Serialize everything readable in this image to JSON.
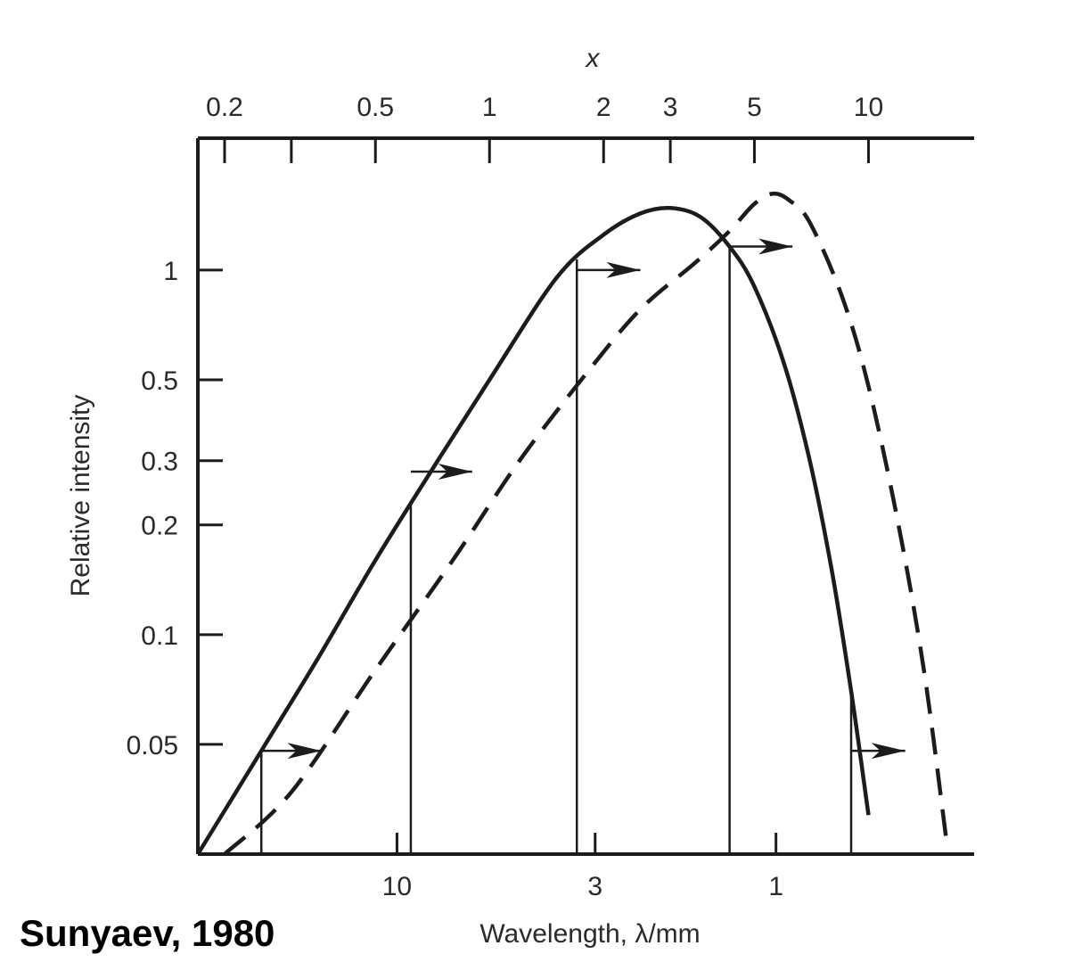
{
  "credit": "Sunyaev, 1980",
  "chart_data": {
    "type": "line",
    "ylabel": "Relative intensity",
    "xlabel_bottom": "Wavelength, λ/mm",
    "xlabel_top": "x",
    "y_scale": "log",
    "x_scale": "log",
    "x_top_ticks": [
      "0.2",
      "0.5",
      "1",
      "2",
      "3",
      "5",
      "10"
    ],
    "x_top_tick_values": [
      0.2,
      0.5,
      1,
      2,
      3,
      5,
      10
    ],
    "x_bottom_ticks": [
      "10",
      "3",
      "1"
    ],
    "x_bottom_tick_values_x": [
      0.57,
      1.9,
      5.7
    ],
    "y_ticks": [
      "1",
      "0.5",
      "0.3",
      "0.2",
      "0.1",
      "0.05"
    ],
    "y_tick_values": [
      1,
      0.5,
      0.3,
      0.2,
      0.1,
      0.05
    ],
    "xlim": [
      0.17,
      19
    ],
    "ylim": [
      0.025,
      2.3
    ],
    "series": [
      {
        "style": "solid",
        "x": [
          0.17,
          0.25,
          0.35,
          0.5,
          0.7,
          1.0,
          1.5,
          2.0,
          2.5,
          3.0,
          3.6,
          4.3,
          5.0,
          6.0,
          7.0,
          8.0,
          9.0,
          10.0
        ],
        "y": [
          0.025,
          0.048,
          0.085,
          0.16,
          0.28,
          0.5,
          0.95,
          1.25,
          1.43,
          1.48,
          1.4,
          1.16,
          0.9,
          0.55,
          0.3,
          0.15,
          0.07,
          0.032
        ]
      },
      {
        "style": "dashed",
        "x": [
          0.2,
          0.3,
          0.5,
          0.8,
          1.2,
          1.8,
          2.5,
          3.5,
          4.3,
          5.0,
          5.6,
          6.2,
          7.0,
          8.5,
          10.0,
          12.0,
          14.0,
          16.0
        ],
        "y": [
          0.025,
          0.037,
          0.08,
          0.16,
          0.3,
          0.52,
          0.78,
          1.05,
          1.28,
          1.52,
          1.62,
          1.55,
          1.35,
          0.85,
          0.48,
          0.2,
          0.08,
          0.028
        ]
      }
    ],
    "drop_lines_x": [
      0.25,
      0.62,
      1.7,
      4.3,
      9.0
    ],
    "arrows": [
      {
        "x_from": 0.25,
        "x_to": 0.36,
        "y": 0.048
      },
      {
        "x_from": 0.62,
        "x_to": 0.9,
        "y": 0.28
      },
      {
        "x_from": 1.7,
        "x_to": 2.5,
        "y": 1.0
      },
      {
        "x_from": 4.3,
        "x_to": 6.3,
        "y": 1.16
      },
      {
        "x_from": 9.0,
        "x_to": 12.5,
        "y": 0.048
      }
    ]
  }
}
